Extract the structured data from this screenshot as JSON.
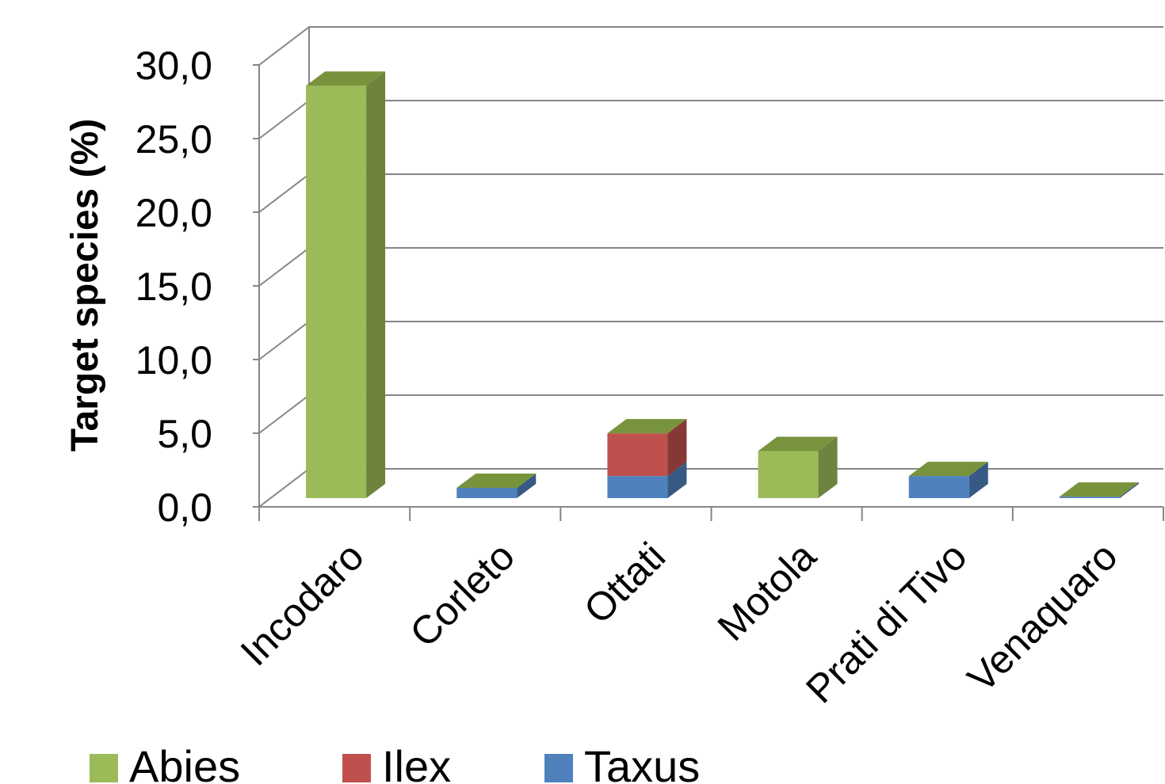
{
  "chart_data": {
    "type": "bar",
    "stacked": true,
    "three_d": true,
    "categories": [
      "Incodaro",
      "Corleto",
      "Ottati",
      "Motola",
      "Prati di Tivo",
      "Venaquaro"
    ],
    "series": [
      {
        "name": "Taxus",
        "color": "#4f81bd",
        "values": [
          0,
          0.7,
          1.5,
          0,
          1.5,
          0.1
        ]
      },
      {
        "name": "Ilex",
        "color": "#c0504d",
        "values": [
          0,
          0,
          2.9,
          0,
          0,
          0
        ]
      },
      {
        "name": "Abies",
        "color": "#9bbb59",
        "values": [
          28.0,
          0,
          0,
          3.2,
          0,
          0
        ]
      }
    ],
    "legend_order": [
      "Abies",
      "Ilex",
      "Taxus"
    ],
    "legend_position": "bottom",
    "ylabel": "Target species (%)",
    "xlabel": "",
    "ylim": [
      0,
      30
    ],
    "yticks": [
      "0,0",
      "5,0",
      "10,0",
      "15,0",
      "20,0",
      "25,0",
      "30,0"
    ],
    "grid": true
  }
}
